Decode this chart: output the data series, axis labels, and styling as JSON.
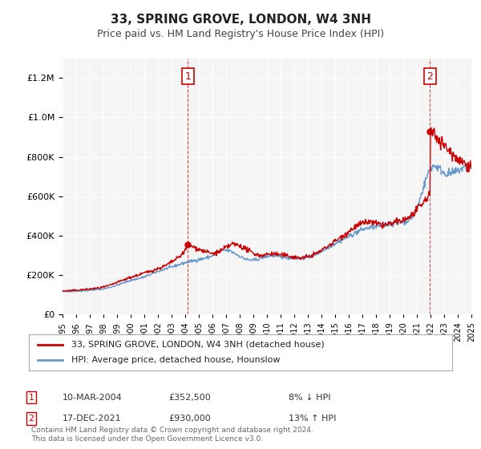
{
  "title": "33, SPRING GROVE, LONDON, W4 3NH",
  "subtitle": "Price paid vs. HM Land Registry's House Price Index (HPI)",
  "legend_line1": "33, SPRING GROVE, LONDON, W4 3NH (detached house)",
  "legend_line2": "HPI: Average price, detached house, Hounslow",
  "annotation1_label": "1",
  "annotation1_date": "10-MAR-2004",
  "annotation1_price": "£352,500",
  "annotation1_note": "8% ↓ HPI",
  "annotation2_label": "2",
  "annotation2_date": "17-DEC-2021",
  "annotation2_price": "£930,000",
  "annotation2_note": "13% ↑ HPI",
  "footer": "Contains HM Land Registry data © Crown copyright and database right 2024.\nThis data is licensed under the Open Government Licence v3.0.",
  "sale1_year": 2004.19,
  "sale1_price": 352500,
  "sale2_year": 2021.96,
  "sale2_price": 930000,
  "price_line_color": "#cc0000",
  "hpi_line_color": "#6699cc",
  "ylim": [
    0,
    1300000
  ],
  "xlim_start": 1995,
  "xlim_end": 2025,
  "background_color": "#ffffff",
  "plot_bg_color": "#f5f5f5",
  "grid_color": "#ffffff",
  "hpi_years": [
    1995,
    1996,
    1997,
    1998,
    1999,
    2000,
    2001,
    2002,
    2003,
    2004,
    2005,
    2006,
    2007,
    2008,
    2009,
    2010,
    2011,
    2012,
    2013,
    2014,
    2015,
    2016,
    2017,
    2018,
    2019,
    2020,
    2021,
    2022,
    2023,
    2024,
    2025
  ],
  "hpi_values": [
    115000,
    118000,
    122000,
    130000,
    148000,
    172000,
    190000,
    218000,
    240000,
    262000,
    278000,
    298000,
    325000,
    295000,
    275000,
    295000,
    292000,
    285000,
    290000,
    320000,
    360000,
    395000,
    430000,
    445000,
    460000,
    470000,
    540000,
    740000,
    720000,
    730000,
    740000
  ],
  "price_years": [
    1995.0,
    1995.5,
    1996.0,
    1996.5,
    1997.0,
    1997.5,
    1998.0,
    1998.5,
    1999.0,
    1999.5,
    2000.0,
    2000.5,
    2001.0,
    2001.5,
    2002.0,
    2002.5,
    2003.0,
    2003.5,
    2004.0,
    2004.19,
    2004.5,
    2005.0,
    2005.5,
    2006.0,
    2006.5,
    2007.0,
    2007.5,
    2008.0,
    2008.5,
    2009.0,
    2009.5,
    2010.0,
    2010.5,
    2011.0,
    2011.5,
    2012.0,
    2012.5,
    2013.0,
    2013.5,
    2014.0,
    2014.5,
    2015.0,
    2015.5,
    2016.0,
    2016.5,
    2017.0,
    2017.5,
    2018.0,
    2018.5,
    2019.0,
    2019.5,
    2020.0,
    2020.5,
    2021.0,
    2021.5,
    2021.96,
    2022.0,
    2022.5,
    2023.0,
    2023.5,
    2024.0,
    2024.5,
    2025.0
  ],
  "price_values": [
    118000,
    120000,
    122000,
    125000,
    128000,
    132000,
    138000,
    148000,
    162000,
    175000,
    188000,
    198000,
    210000,
    220000,
    232000,
    245000,
    265000,
    288000,
    322000,
    352500,
    345000,
    330000,
    318000,
    308000,
    318000,
    340000,
    358000,
    348000,
    330000,
    310000,
    298000,
    305000,
    308000,
    302000,
    298000,
    290000,
    286000,
    292000,
    305000,
    325000,
    348000,
    372000,
    395000,
    420000,
    445000,
    462000,
    470000,
    460000,
    452000,
    458000,
    468000,
    478000,
    495000,
    528000,
    568000,
    615000,
    930000,
    900000,
    860000,
    820000,
    790000,
    770000,
    750000
  ]
}
